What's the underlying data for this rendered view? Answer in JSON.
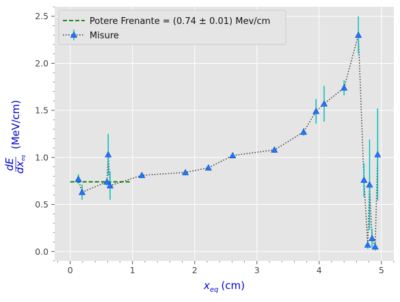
{
  "chart_data": {
    "type": "scatter",
    "xlabel": "x_eq (cm)",
    "xlabel_parts": {
      "var": "x",
      "sub": "eq",
      "unit": "(cm)"
    },
    "ylabel": "dE/dx_eq (MeV/cm)",
    "ylabel_parts": {
      "num": "dE",
      "den": "dx",
      "den_sub": "eq",
      "unit": "(MeV/cm)"
    },
    "xlim": [
      -0.25,
      5.2
    ],
    "ylim": [
      -0.1,
      2.6
    ],
    "x_ticks": [
      0,
      1,
      2,
      3,
      4,
      5
    ],
    "x_tick_labels": [
      "0",
      "1",
      "2",
      "3",
      "4",
      "5"
    ],
    "y_ticks": [
      0.0,
      0.5,
      1.0,
      1.5,
      2.0,
      2.5
    ],
    "y_tick_labels": [
      "0.0",
      "0.5",
      "1.0",
      "1.5",
      "2.0",
      "2.5"
    ],
    "grid": true,
    "legend_position": "top-left",
    "colors": {
      "background": "#e5e5e5",
      "grid": "#ffffff",
      "fit_line": "#008000",
      "data_line": "#333333",
      "errorbar": "#00bfbf",
      "marker": "#1f77ff",
      "axis_label": "#0000cc"
    },
    "series": [
      {
        "name": "Potere Frenante = (0.74 ± 0.01) Mev/cm",
        "kind": "fit",
        "style": "dashed",
        "x": [
          0.0,
          0.98
        ],
        "y": [
          0.74,
          0.74
        ]
      },
      {
        "name": "Misure",
        "kind": "measurements",
        "style": "dotted",
        "marker": "triangle-up",
        "x": [
          0.13,
          0.19,
          0.59,
          0.61,
          0.64,
          1.15,
          1.85,
          2.22,
          2.61,
          3.28,
          3.75,
          3.95,
          4.08,
          4.4,
          4.63,
          4.72,
          4.78,
          4.81,
          4.85,
          4.9,
          4.94
        ],
        "y": [
          0.77,
          0.63,
          0.74,
          1.03,
          0.7,
          0.81,
          0.84,
          0.89,
          1.02,
          1.08,
          1.27,
          1.49,
          1.57,
          1.74,
          2.3,
          0.76,
          0.07,
          0.71,
          0.14,
          0.05,
          1.03
        ],
        "y_err": [
          0.05,
          0.08,
          0.04,
          0.22,
          0.15,
          0.03,
          0.03,
          0.03,
          0.03,
          0.03,
          0.04,
          0.13,
          0.19,
          0.08,
          0.2,
          0.18,
          0.04,
          0.48,
          0.1,
          0.04,
          0.49
        ]
      }
    ]
  }
}
